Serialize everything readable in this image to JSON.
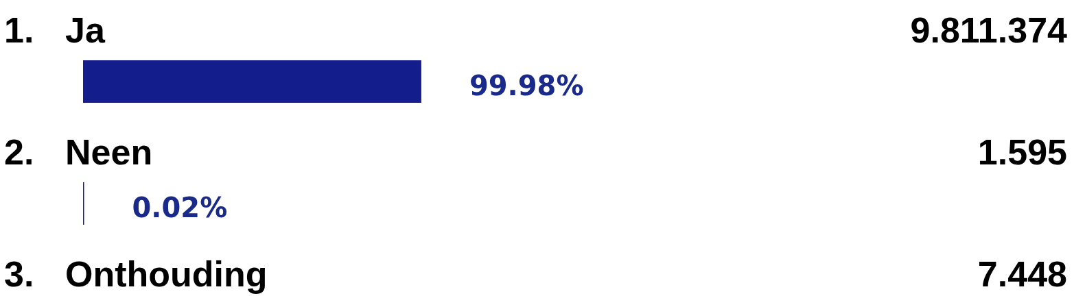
{
  "chart_data": {
    "type": "bar",
    "orientation": "horizontal",
    "categories": [
      "1. Ja",
      "2. Neen",
      "3. Onthouding"
    ],
    "values": [
      99.98,
      0.02,
      null
    ],
    "value_labels": [
      "99.98%",
      "0.02%",
      null
    ],
    "color": "#131d8c",
    "annotations": [
      "9.811.374",
      "1.595",
      "7.448"
    ]
  }
}
